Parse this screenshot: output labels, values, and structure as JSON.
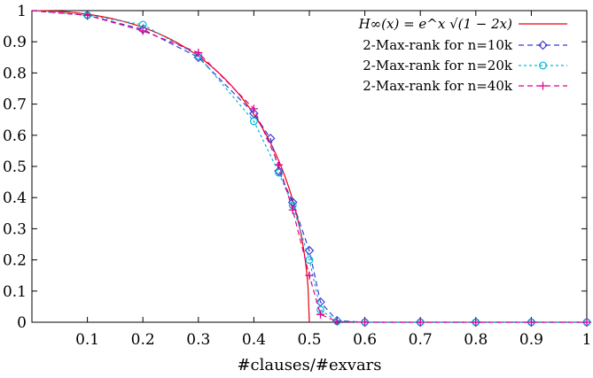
{
  "chart_data": {
    "type": "line",
    "title": "",
    "xlabel": "#clauses/#exvars",
    "ylabel": "",
    "xlim": [
      0,
      1
    ],
    "ylim": [
      0,
      1
    ],
    "xticks": [
      "0.1",
      "0.2",
      "0.3",
      "0.4",
      "0.5",
      "0.6",
      "0.7",
      "0.8",
      "0.9",
      "1"
    ],
    "yticks": [
      "0",
      "0.1",
      "0.2",
      "0.3",
      "0.4",
      "0.5",
      "0.6",
      "0.7",
      "0.8",
      "0.9",
      "1"
    ],
    "grid": false,
    "legend_position": "top-right",
    "series": [
      {
        "name": "H∞(x) = e^x √(1 − 2x)",
        "style": "solid",
        "color": "#e8000b",
        "marker": "none",
        "formula": "exp(x)*sqrt(1-2x)",
        "domain": [
          0,
          0.5
        ]
      },
      {
        "name": "2-Max-rank for n=10k",
        "style": "dashed",
        "color": "#3a3ad6",
        "marker": "diamond",
        "x": [
          0.1,
          0.2,
          0.3,
          0.4,
          0.43,
          0.445,
          0.47,
          0.5,
          0.52,
          0.55,
          0.6,
          0.7,
          0.8,
          0.9,
          1.0
        ],
        "y": [
          0.985,
          0.94,
          0.85,
          0.67,
          0.59,
          0.485,
          0.385,
          0.23,
          0.065,
          0.005,
          0.0,
          0.0,
          0.0,
          0.0,
          0.0
        ]
      },
      {
        "name": "2-Max-rank for n=20k",
        "style": "dotted",
        "color": "#00b7d9",
        "marker": "circle",
        "x": [
          0.1,
          0.2,
          0.3,
          0.4,
          0.445,
          0.47,
          0.5,
          0.52,
          0.55,
          0.6,
          0.7,
          0.8,
          0.9,
          1.0
        ],
        "y": [
          0.985,
          0.955,
          0.855,
          0.645,
          0.48,
          0.375,
          0.2,
          0.04,
          0.003,
          0.0,
          0.0,
          0.0,
          0.0,
          0.0
        ]
      },
      {
        "name": "2-Max-rank for n=40k",
        "style": "dashed",
        "color": "#e0008a",
        "marker": "plus",
        "x": [
          0.1,
          0.2,
          0.3,
          0.4,
          0.445,
          0.47,
          0.5,
          0.52,
          0.55,
          0.6,
          0.7,
          0.8,
          0.9,
          1.0
        ],
        "y": [
          0.985,
          0.935,
          0.865,
          0.685,
          0.505,
          0.36,
          0.15,
          0.025,
          0.002,
          0.0,
          0.0,
          0.0,
          0.0,
          0.0
        ]
      }
    ]
  }
}
